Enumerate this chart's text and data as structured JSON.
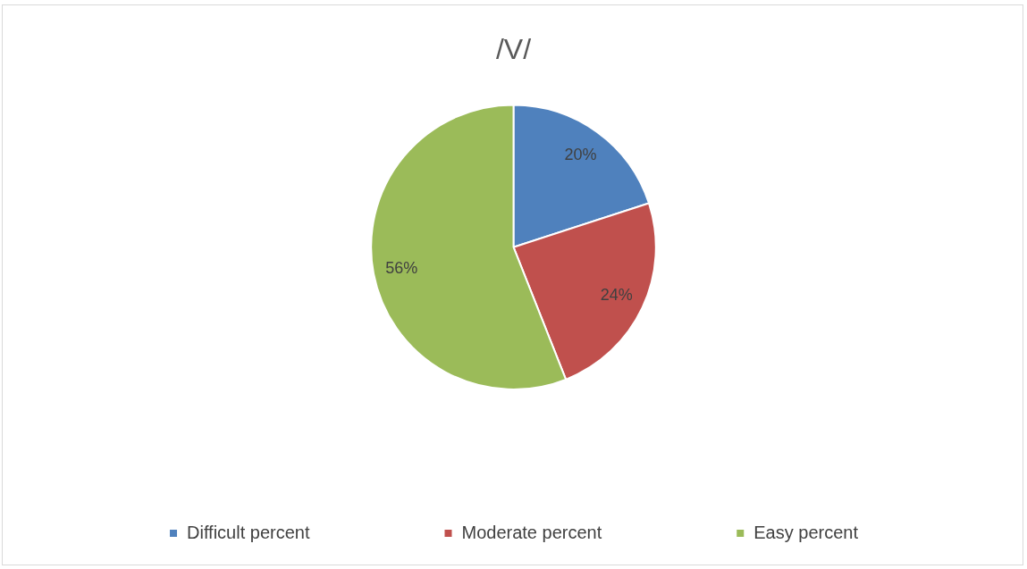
{
  "chart_data": {
    "type": "pie",
    "title": "/V/",
    "categories": [
      "Difficult percent",
      "Moderate percent",
      "Easy percent"
    ],
    "values": [
      20,
      24,
      56
    ],
    "value_labels": [
      "20%",
      "24%",
      "56%"
    ],
    "colors": [
      "#4f81bd",
      "#c0504d",
      "#9bbb59"
    ],
    "legend": "bottom"
  }
}
